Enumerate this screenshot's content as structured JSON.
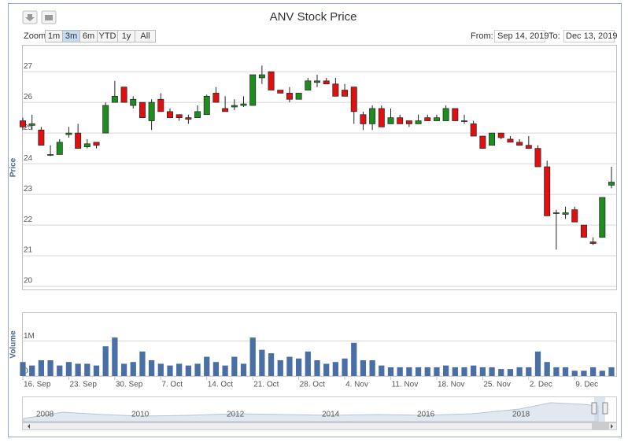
{
  "chart_data": {
    "type": "candlestick",
    "title": "ANV Stock Price",
    "y_label": "Price",
    "y2_label": "Volume",
    "categories": [
      "16. Sep",
      null,
      null,
      null,
      null,
      "23. Sep",
      null,
      null,
      null,
      null,
      "30. Sep",
      null,
      null,
      null,
      null,
      "7. Oct",
      null,
      null,
      null,
      null,
      "14. Oct",
      null,
      null,
      null,
      null,
      "21. Oct",
      null,
      null,
      null,
      null,
      "28. Oct",
      null,
      null,
      null,
      null,
      "4. Nov",
      null,
      null,
      null,
      null,
      "11. Nov",
      null,
      null,
      null,
      null,
      "18. Nov",
      null,
      null,
      null,
      null,
      "25. Nov",
      null,
      null,
      null,
      null,
      "2. Dec",
      null,
      null,
      null,
      null,
      "9. Dec",
      null,
      null,
      null,
      null
    ],
    "open": [
      25.4,
      25.25,
      25.1,
      24.3,
      24.3,
      24.95,
      25.0,
      24.55,
      24.7,
      25.0,
      26.0,
      26.5,
      25.9,
      26.0,
      25.4,
      26.1,
      25.7,
      25.6,
      25.5,
      25.5,
      25.6,
      26.3,
      25.8,
      25.85,
      25.9,
      25.9,
      26.8,
      27.0,
      26.4,
      26.3,
      26.1,
      26.4,
      26.65,
      26.7,
      26.6,
      26.4,
      26.5,
      25.6,
      25.3,
      25.8,
      25.3,
      25.5,
      25.4,
      25.3,
      25.5,
      25.4,
      25.4,
      25.8,
      25.4,
      25.3,
      24.9,
      24.6,
      25.0,
      24.8,
      24.7,
      24.6,
      24.5,
      23.9,
      22.4,
      22.35,
      22.5,
      22.0,
      21.45,
      21.6,
      23.3
    ],
    "high": [
      25.5,
      25.6,
      25.2,
      24.6,
      24.8,
      25.2,
      25.3,
      24.8,
      24.7,
      26.0,
      26.7,
      26.5,
      26.2,
      26.0,
      26.1,
      26.3,
      25.8,
      25.6,
      25.6,
      25.9,
      26.25,
      26.5,
      26.2,
      26.1,
      26.2,
      26.9,
      27.2,
      27.0,
      26.4,
      26.5,
      26.3,
      26.8,
      26.9,
      26.8,
      26.8,
      26.6,
      26.5,
      25.7,
      25.9,
      25.9,
      25.8,
      25.6,
      25.4,
      25.6,
      25.6,
      25.6,
      25.9,
      25.8,
      25.6,
      25.4,
      24.9,
      25.0,
      25.0,
      24.9,
      24.8,
      24.9,
      24.6,
      24.1,
      22.5,
      22.6,
      22.6,
      22.0,
      21.6,
      22.9,
      23.9
    ],
    "low": [
      25.1,
      25.1,
      24.6,
      24.25,
      24.3,
      24.85,
      24.5,
      24.5,
      24.5,
      25.0,
      26.0,
      26.0,
      25.8,
      25.5,
      25.1,
      25.7,
      25.5,
      25.4,
      25.3,
      25.5,
      25.6,
      26.0,
      25.7,
      25.75,
      25.85,
      25.9,
      26.6,
      26.4,
      26.3,
      26.0,
      26.1,
      26.4,
      26.5,
      26.6,
      26.2,
      26.2,
      25.3,
      25.1,
      25.1,
      25.2,
      25.3,
      25.3,
      25.2,
      25.3,
      25.4,
      25.4,
      25.4,
      25.4,
      25.3,
      24.9,
      24.5,
      24.6,
      24.8,
      24.7,
      24.6,
      24.5,
      23.9,
      22.3,
      21.2,
      22.2,
      22.1,
      21.6,
      21.35,
      21.6,
      23.2
    ],
    "close": [
      25.2,
      25.3,
      24.6,
      24.3,
      24.7,
      25.0,
      24.5,
      24.65,
      24.6,
      25.9,
      26.2,
      26.0,
      26.1,
      25.5,
      26.0,
      25.7,
      25.5,
      25.5,
      25.45,
      25.7,
      26.2,
      26.0,
      25.7,
      25.9,
      25.95,
      26.9,
      26.9,
      26.4,
      26.3,
      26.1,
      26.3,
      26.7,
      26.7,
      26.6,
      26.2,
      26.2,
      25.7,
      25.3,
      25.8,
      25.2,
      25.5,
      25.3,
      25.3,
      25.4,
      25.4,
      25.5,
      25.8,
      25.4,
      25.4,
      24.9,
      24.5,
      25.0,
      24.85,
      24.7,
      24.6,
      24.5,
      23.9,
      22.3,
      22.4,
      22.4,
      22.1,
      21.6,
      21.4,
      22.9,
      23.4
    ],
    "up_color": "#1e8c1e",
    "down_color": "#e01010",
    "ylim": [
      19.9,
      27.85
    ],
    "yticks": [
      20,
      21,
      22,
      23,
      24,
      25,
      26,
      27
    ],
    "volume": {
      "color": "#4a6fa5",
      "values": [
        400000,
        300000,
        450000,
        450000,
        300000,
        400000,
        350000,
        350000,
        300000,
        850000,
        1100000,
        350000,
        400000,
        700000,
        450000,
        350000,
        300000,
        350000,
        300000,
        350000,
        550000,
        400000,
        300000,
        550000,
        350000,
        1100000,
        750000,
        650000,
        450000,
        550000,
        500000,
        700000,
        450000,
        350000,
        400000,
        500000,
        950000,
        450000,
        450000,
        300000,
        250000,
        250000,
        250000,
        250000,
        250000,
        250000,
        300000,
        250000,
        250000,
        300000,
        250000,
        250000,
        200000,
        200000,
        250000,
        250000,
        700000,
        400000,
        250000,
        250000,
        150000,
        150000,
        250000,
        150000,
        250000
      ]
    },
    "y2lim": [
      0,
      1800000
    ],
    "y2ticks": [
      0,
      {
        "value": 1000000,
        "label": "1M"
      }
    ],
    "grid": true
  },
  "toolbar": {
    "zoom_label": "Zoom",
    "buttons": [
      "1m",
      "3m",
      "6m",
      "YTD",
      "1y",
      "All"
    ],
    "active": 1,
    "from_label": "From:",
    "from": "Sep 14, 2019",
    "to_label": "To:",
    "to": "Dec 13, 2019"
  },
  "navigator": {
    "labels": [
      "2008",
      "2010",
      "2012",
      "2014",
      "2016",
      "2018"
    ]
  }
}
